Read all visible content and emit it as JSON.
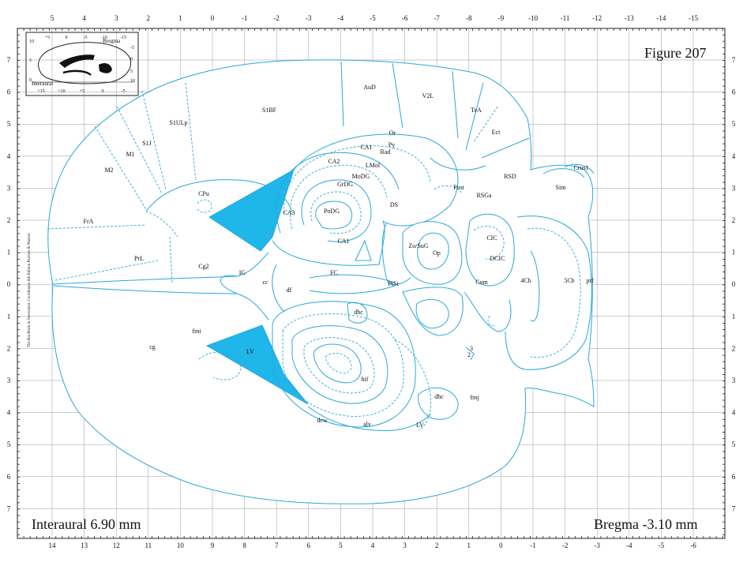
{
  "figure_label": "Figure 207",
  "interaural_label": "Interaural 6.90 mm",
  "bregma_label": "Bregma -3.10 mm",
  "side_credit": "The Rat Brain in Stereotaxic Coordinates  6th Edition  Paxinos & Watson",
  "inset": {
    "title": "Bregma",
    "interaural": "Interaural",
    "top_ticks": [
      "+5",
      "0",
      "-5",
      "-10",
      "-15"
    ],
    "bottom_ticks": [
      "+15",
      "+10",
      "+5",
      "0",
      "-5"
    ],
    "left_ticks": [
      "10",
      "5",
      "0"
    ],
    "right_ticks": [
      "-5",
      "0",
      "5",
      "10"
    ]
  },
  "top_axis": [
    "5",
    "4",
    "3",
    "2",
    "1",
    "0",
    "-1",
    "-2",
    "-3",
    "-4",
    "-5",
    "-6",
    "-7",
    "-8",
    "-9",
    "-10",
    "-11",
    "-12",
    "-13",
    "-14",
    "-15"
  ],
  "bottom_axis": [
    "14",
    "13",
    "12",
    "11",
    "10",
    "9",
    "8",
    "7",
    "6",
    "5",
    "4",
    "3",
    "2",
    "1",
    "0",
    "-1",
    "-2",
    "-3",
    "-4",
    "-5",
    "-6"
  ],
  "side_axis": [
    "7",
    "6",
    "5",
    "4",
    "3",
    "2",
    "1",
    "0",
    "1",
    "2",
    "3",
    "4",
    "5",
    "6",
    "7"
  ],
  "labels": {
    "AuD": "AuD",
    "V2L": "V2L",
    "TeA": "TeA",
    "Ect": "Ect",
    "S1BF": "S1BF",
    "S1ULp": "S1ULp",
    "S1J": "S1J",
    "M1": "M1",
    "M2": "M2",
    "FrA": "FrA",
    "PrL": "PrL",
    "Cg2": "Cg2",
    "CPu": "CPu",
    "IG": "IG",
    "cc": "cc",
    "fmi": "fmi",
    "cg": "cg",
    "LV": "LV",
    "df": "df",
    "CA3": "CA3",
    "CA2": "CA2",
    "CA1a": "CA1",
    "CA1b": "CA1",
    "Or": "Or",
    "Py": "Py",
    "Rad": "Rad",
    "LMol": "LMol",
    "MoDG": "MoDG",
    "GrDG": "GrDG",
    "PoDG": "PoDG",
    "DS": "DS",
    "FC": "FC",
    "PtSt": "PtSt",
    "ZoSuG": "Zo/SuG",
    "Op": "Op",
    "Post": "Post",
    "RSGa": "RSGa",
    "RSD": "RSD",
    "CIC": "CIC",
    "DCIC": "DCIC",
    "Com": "Com",
    "fourCb": "4Cb",
    "fiveCb": "5Cb",
    "prf": "prf",
    "Sim": "Sim",
    "Crus1": "Crus1",
    "dhc1": "dhc",
    "dhc2": "dhc",
    "hif": "hif",
    "fmj": "fmj",
    "dcw": "dcw",
    "alv": "alv",
    "LV2": "LV",
    "n3": "3",
    "n2": "2"
  }
}
